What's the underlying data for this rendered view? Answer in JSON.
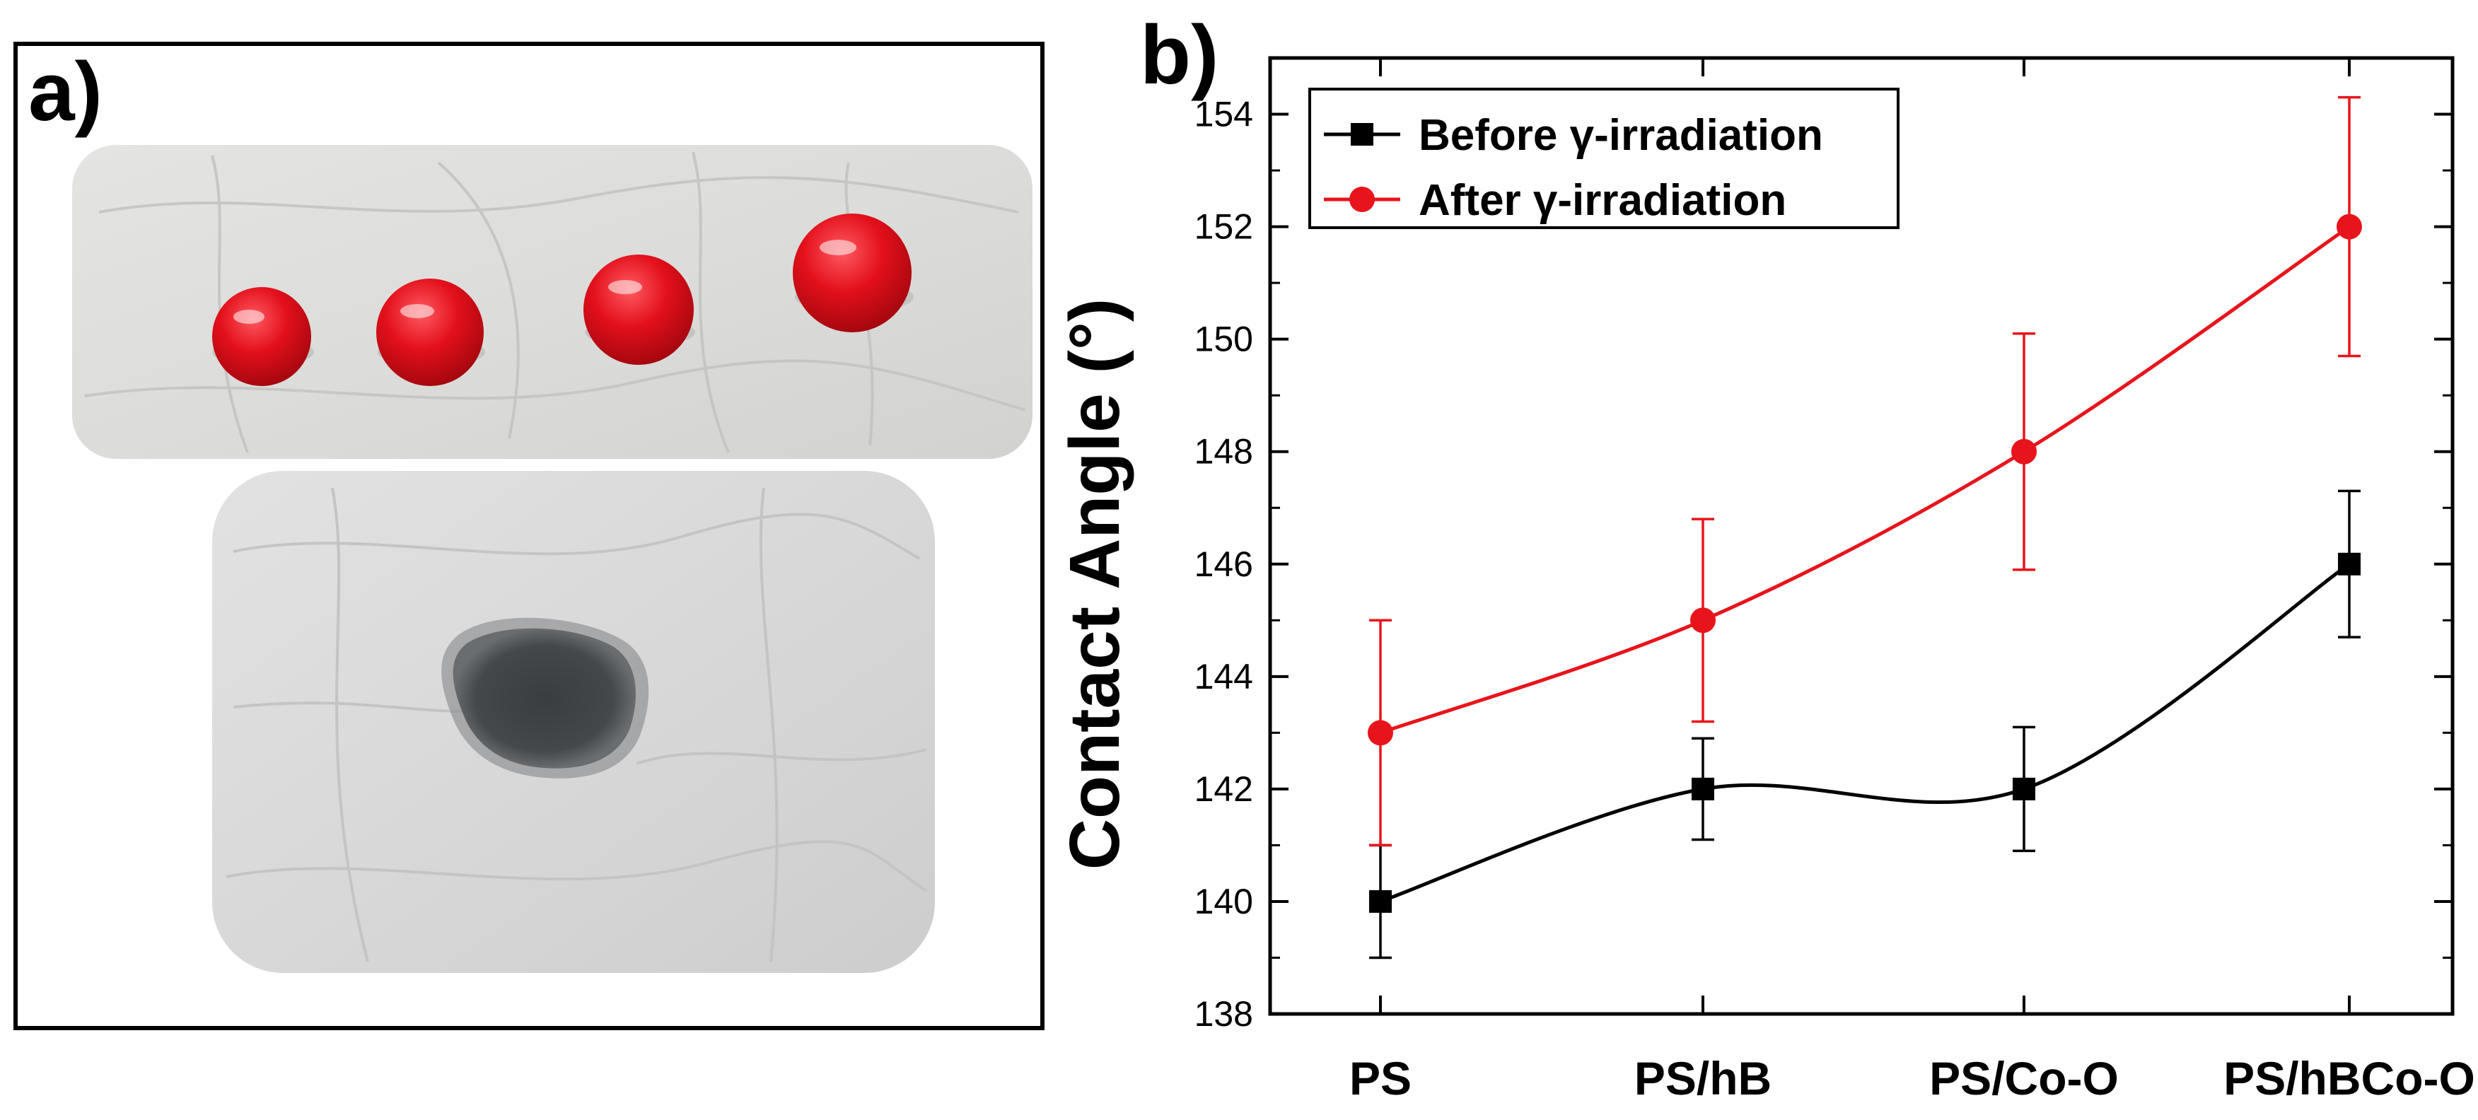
{
  "panel_a": {
    "label": "a)",
    "top_photo": "four red water droplets beading on a white superhydrophobic fabric",
    "bottom_photo": "dark stain absorbed into untreated white fabric"
  },
  "panel_b": {
    "label": "b)"
  },
  "colors": {
    "before": "#000000",
    "after": "#e8141c"
  },
  "chart_data": {
    "type": "line",
    "title": "",
    "xlabel": "",
    "ylabel": "Contact Angle (°)",
    "categories": [
      "PS",
      "PS/hB",
      "PS/Co-O",
      "PS/hBCo-O"
    ],
    "ylim": [
      138,
      155
    ],
    "yticks": [
      138,
      140,
      142,
      144,
      146,
      148,
      150,
      152,
      154
    ],
    "legend_position": "top-left",
    "series": [
      {
        "name": "Before γ-irradiation",
        "marker": "square",
        "color": "#000000",
        "values": [
          140,
          142,
          142,
          146
        ],
        "errors": [
          1.0,
          0.9,
          1.1,
          1.3
        ]
      },
      {
        "name": "After γ-irradiation",
        "marker": "circle",
        "color": "#e8141c",
        "values": [
          143,
          145,
          148,
          152
        ],
        "errors": [
          2.0,
          1.8,
          2.1,
          2.3
        ]
      }
    ]
  }
}
